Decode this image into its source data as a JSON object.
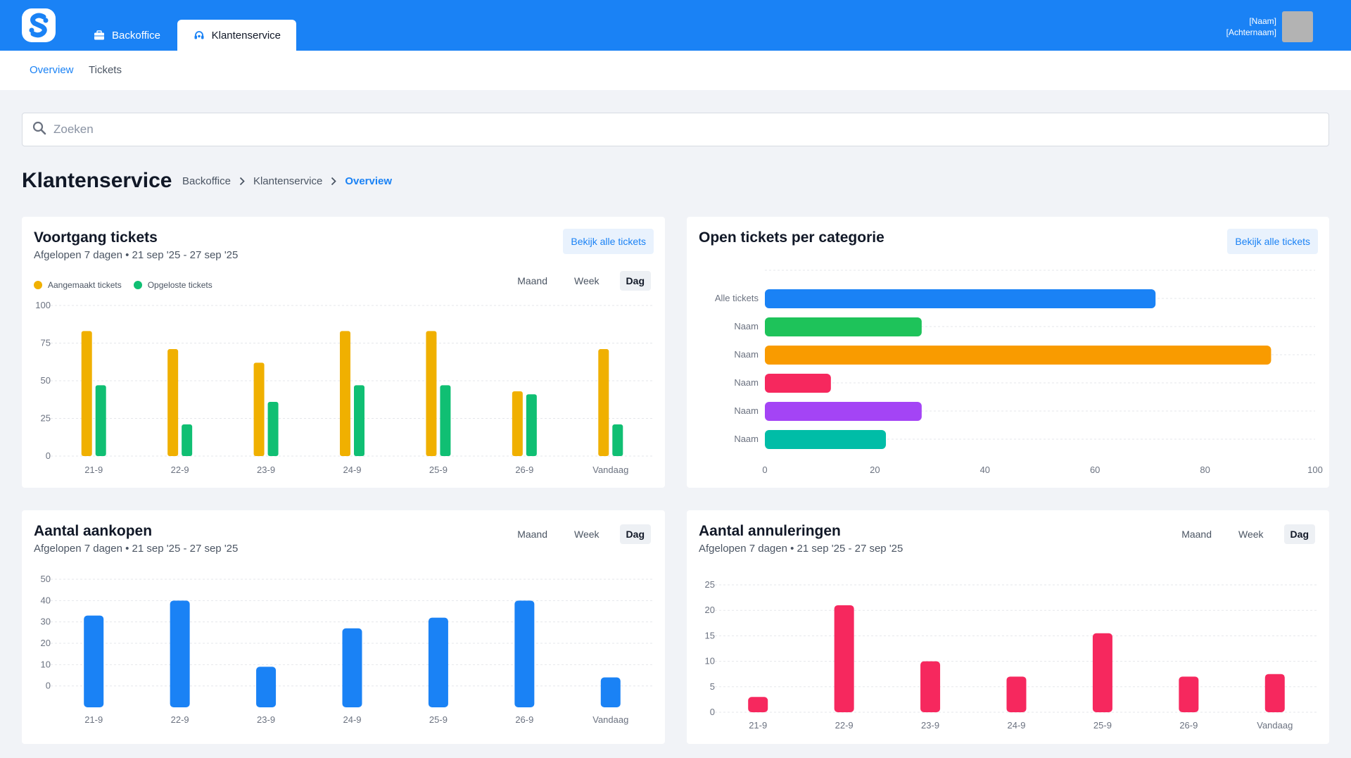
{
  "topbar": {
    "tabs": [
      {
        "label": "Backoffice",
        "icon": "briefcase-icon"
      },
      {
        "label": "Klantenservice",
        "icon": "headset-icon"
      }
    ],
    "user": {
      "first": "[Naam]",
      "last": "[Achternaam]"
    }
  },
  "subnav": {
    "items": [
      "Overview",
      "Tickets"
    ]
  },
  "search": {
    "placeholder": "Zoeken"
  },
  "page": {
    "title": "Klantenservice",
    "breadcrumb": [
      "Backoffice",
      "Klantenservice",
      "Overview"
    ]
  },
  "toggle": {
    "options": [
      "Maand",
      "Week",
      "Dag"
    ],
    "selected": "Dag"
  },
  "cards": {
    "tickets": {
      "title": "Voortgang tickets",
      "subtitle": "Afgelopen 7 dagen • 21 sep '25 - 27 sep '25",
      "button": "Bekijk alle tickets"
    },
    "categories": {
      "title": "Open tickets per categorie",
      "button": "Bekijk alle tickets"
    },
    "purchases": {
      "title": "Aantal aankopen",
      "subtitle": "Afgelopen 7 dagen • 21 sep '25 - 27 sep '25"
    },
    "cancellations": {
      "title": "Aantal annuleringen",
      "subtitle": "Afgelopen 7 dagen • 21 sep '25 - 27 sep '25"
    }
  },
  "chart_data": [
    {
      "type": "bar",
      "categories": [
        "21-9",
        "22-9",
        "23-9",
        "24-9",
        "25-9",
        "26-9",
        "Vandaag"
      ],
      "series": [
        {
          "name": "Aangemaakt tickets",
          "color": "#f0b000",
          "values": [
            83,
            71,
            62,
            83,
            83,
            43,
            71
          ]
        },
        {
          "name": "Opgeloste tickets",
          "color": "#10bf73",
          "values": [
            47,
            21,
            36,
            47,
            47,
            41,
            21
          ]
        }
      ],
      "yticks": [
        0,
        25,
        50,
        75,
        100
      ],
      "ylim": [
        0,
        100
      ],
      "legend": "top-left",
      "grid": true
    },
    {
      "type": "bar",
      "orientation": "horizontal",
      "categories": [
        "Alle tickets",
        "Naam",
        "Naam",
        "Naam",
        "Naam",
        "Naam"
      ],
      "values": [
        71,
        28.5,
        92,
        12,
        28.5,
        22
      ],
      "colors": [
        "#1a82f5",
        "#1ec35a",
        "#f99b00",
        "#f6285e",
        "#a444f5",
        "#00bda7"
      ],
      "xticks": [
        0,
        20,
        40,
        60,
        80,
        100
      ],
      "xlim": [
        0,
        100
      ],
      "grid": true
    },
    {
      "type": "bar",
      "categories": [
        "21-9",
        "22-9",
        "23-9",
        "24-9",
        "25-9",
        "26-9",
        "Vandaag"
      ],
      "values": [
        33,
        40,
        9,
        27,
        32,
        40,
        4
      ],
      "color": "#1a82f5",
      "yticks": [
        0,
        10,
        20,
        30,
        40,
        50
      ],
      "ylim": [
        -10,
        50
      ],
      "grid": true
    },
    {
      "type": "bar",
      "categories": [
        "21-9",
        "22-9",
        "23-9",
        "24-9",
        "25-9",
        "26-9",
        "Vandaag"
      ],
      "values": [
        3,
        21,
        10,
        7,
        15.5,
        7,
        7.5
      ],
      "color": "#f6285e",
      "yticks": [
        0,
        5,
        10,
        15,
        20,
        25
      ],
      "ylim": [
        0,
        25
      ],
      "grid": true
    }
  ]
}
